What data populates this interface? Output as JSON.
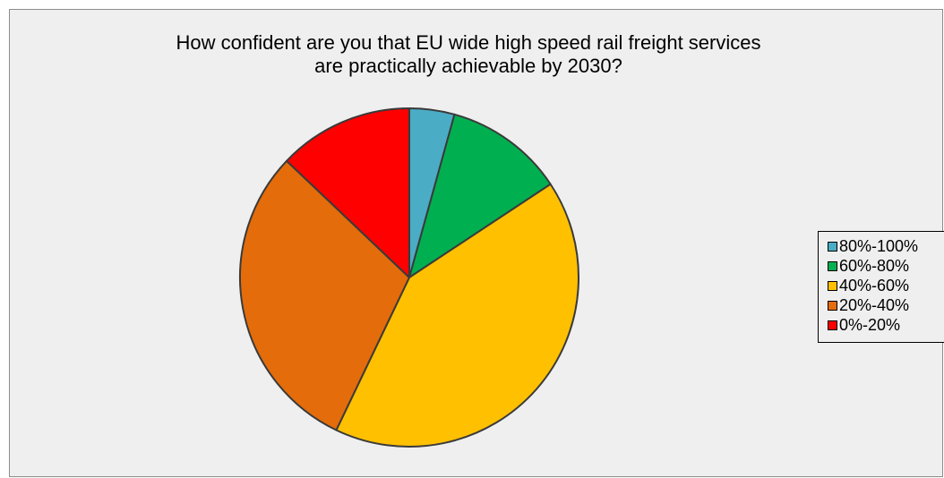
{
  "chart_data": {
    "type": "pie",
    "title": "How confident are you that EU wide high speed rail freight services are practically achievable by 2030?",
    "title_lines": [
      "How confident are you that EU wide high speed rail freight services",
      "are practically achievable by 2030?"
    ],
    "categories": [
      "80%-100%",
      "60%-80%",
      "40%-60%",
      "20%-40%",
      "0%-20%"
    ],
    "values": [
      4.3,
      11.4,
      41.4,
      30.0,
      12.9
    ],
    "colors": [
      "#4bacc6",
      "#00b050",
      "#ffc000",
      "#e46c0a",
      "#ff0000"
    ],
    "legend_position": "right",
    "start_angle_deg": 0,
    "direction": "clockwise"
  }
}
